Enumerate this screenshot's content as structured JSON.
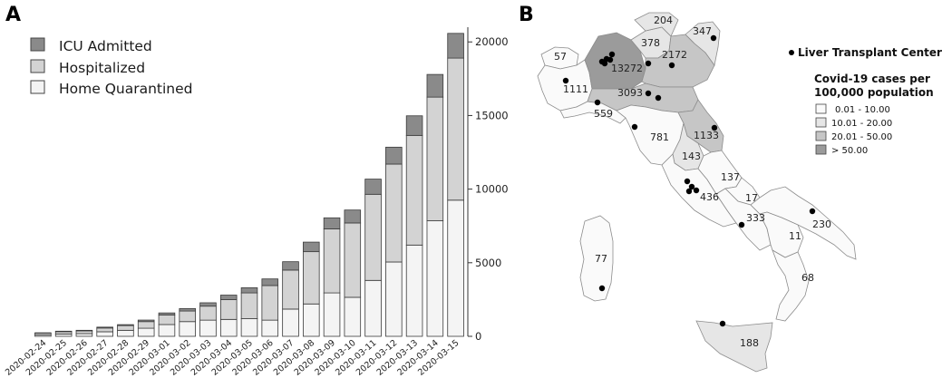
{
  "panel_a": {
    "letter": "A"
  },
  "panel_b": {
    "letter": "B"
  },
  "chart_data": {
    "type": "bar",
    "stacked": true,
    "title": "",
    "xlabel": "",
    "ylabel": "",
    "ylim": [
      0,
      21000
    ],
    "y_ticks": [
      0,
      5000,
      10000,
      15000,
      20000
    ],
    "y_axis_side": "right",
    "legend_position": "top-left",
    "grid": false,
    "categories": [
      "2020-02-24",
      "2020-02-25",
      "2020-02-26",
      "2020-02-27",
      "2020-02-28",
      "2020-02-29",
      "2020-03-01",
      "2020-03-02",
      "2020-03-03",
      "2020-03-04",
      "2020-03-05",
      "2020-03-06",
      "2020-03-07",
      "2020-03-08",
      "2020-03-09",
      "2020-03-10",
      "2020-03-11",
      "2020-03-12",
      "2020-03-13",
      "2020-03-14",
      "2020-03-15"
    ],
    "series": [
      {
        "name": "Home Quarantined",
        "color": "#f4f4f4",
        "values": [
          95,
          160,
          185,
          310,
          410,
          550,
          800,
          1000,
          1100,
          1150,
          1200,
          1100,
          1850,
          2200,
          2950,
          2650,
          3800,
          5050,
          6200,
          7850,
          9250
        ]
      },
      {
        "name": "Hospitalized",
        "color": "#d3d3d3",
        "values": [
          115,
          155,
          185,
          255,
          320,
          450,
          650,
          720,
          950,
          1350,
          1750,
          2350,
          2650,
          3550,
          4350,
          5050,
          5850,
          6650,
          7450,
          8400,
          9650
        ]
      },
      {
        "name": "ICU Admitted",
        "color": "#8a8a8a",
        "values": [
          30,
          35,
          40,
          60,
          65,
          105,
          140,
          165,
          230,
          300,
          350,
          450,
          570,
          650,
          750,
          880,
          1030,
          1150,
          1330,
          1540,
          1680
        ]
      }
    ]
  },
  "map": {
    "legend_title_lines": [
      "Covid-19 cases per",
      "100,000 population"
    ],
    "legend_ranges": [
      {
        "label": "0.01 - 10.00",
        "color": "#fafafa"
      },
      {
        "label": "10.01 - 20.00",
        "color": "#e6e6e6"
      },
      {
        "label": "20.01 - 50.00",
        "color": "#c6c6c6"
      },
      {
        "label": "> 50.00",
        "color": "#9b9b9b"
      }
    ],
    "center_legend_label": "Liver Transplant Center",
    "region_values": [
      "204",
      "347",
      "378",
      "57",
      "13272",
      "2172",
      "1111",
      "3093",
      "559",
      "1133",
      "781",
      "143",
      "137",
      "436",
      "17",
      "230",
      "333",
      "11",
      "77",
      "68",
      "188"
    ]
  }
}
